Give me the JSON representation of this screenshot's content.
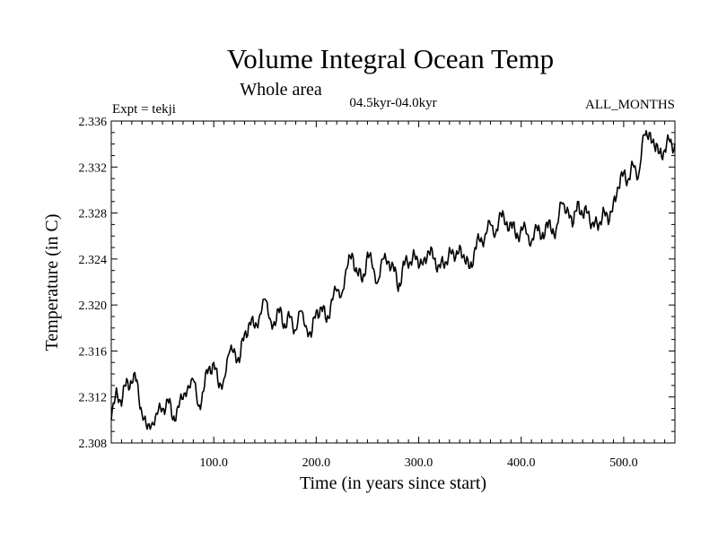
{
  "chart_data": {
    "type": "line",
    "title": "Volume Integral Ocean Temp",
    "subtitle": "Whole area",
    "period_label": "04.5kyr-04.0kyr",
    "expt_label": "Expt = tekji",
    "months_label": "ALL_MONTHS",
    "xlabel": "Time (in years since start)",
    "ylabel": "Temperature (in C)",
    "xlim": [
      0,
      550
    ],
    "ylim": [
      2.308,
      2.336
    ],
    "xticks": [
      100,
      200,
      300,
      400,
      500
    ],
    "xtick_labels": [
      "100.0",
      "200.0",
      "300.0",
      "400.0",
      "500.0"
    ],
    "yticks": [
      2.308,
      2.312,
      2.316,
      2.32,
      2.324,
      2.328,
      2.332,
      2.336
    ],
    "ytick_labels": [
      "2.308",
      "2.312",
      "2.316",
      "2.320",
      "2.324",
      "2.328",
      "2.332",
      "2.336"
    ],
    "series": [
      {
        "name": "Volume Integral Ocean Temp",
        "x": [
          0,
          5,
          10,
          15,
          20,
          25,
          30,
          35,
          40,
          45,
          50,
          55,
          60,
          65,
          70,
          75,
          80,
          85,
          90,
          95,
          100,
          105,
          110,
          115,
          120,
          125,
          130,
          135,
          140,
          145,
          150,
          155,
          160,
          165,
          170,
          175,
          180,
          185,
          190,
          195,
          200,
          205,
          210,
          215,
          220,
          225,
          230,
          235,
          240,
          245,
          250,
          255,
          260,
          265,
          270,
          275,
          280,
          285,
          290,
          295,
          300,
          305,
          310,
          315,
          320,
          325,
          330,
          335,
          340,
          345,
          350,
          355,
          360,
          365,
          370,
          375,
          380,
          385,
          390,
          395,
          400,
          405,
          410,
          415,
          420,
          425,
          430,
          435,
          440,
          445,
          450,
          455,
          460,
          465,
          470,
          475,
          480,
          485,
          490,
          495,
          500,
          505,
          510,
          515,
          520,
          525,
          530,
          535,
          540,
          545,
          550
        ],
        "values": [
          2.31,
          2.3128,
          2.3112,
          2.3136,
          2.3132,
          2.3135,
          2.3105,
          2.3092,
          2.3098,
          2.3105,
          2.311,
          2.3118,
          2.31,
          2.3112,
          2.3118,
          2.313,
          2.3135,
          2.3112,
          2.3125,
          2.3145,
          2.315,
          2.3128,
          2.3136,
          2.3158,
          2.3162,
          2.315,
          2.3175,
          2.3185,
          2.318,
          2.3192,
          2.3205,
          2.3188,
          2.3182,
          2.3198,
          2.318,
          2.319,
          2.3178,
          2.3195,
          2.3182,
          2.3172,
          2.3195,
          2.3198,
          2.3185,
          2.3205,
          2.3212,
          2.321,
          2.3232,
          2.3245,
          2.3228,
          2.322,
          2.3246,
          2.3232,
          2.322,
          2.324,
          2.3238,
          2.3235,
          2.3212,
          2.3238,
          2.3232,
          2.3248,
          2.3232,
          2.324,
          2.3246,
          2.324,
          2.3235,
          2.3232,
          2.325,
          2.3238,
          2.3252,
          2.3238,
          2.3232,
          2.325,
          2.3255,
          2.3262,
          2.327,
          2.3262,
          2.328,
          2.327,
          2.3272,
          2.3258,
          2.3268,
          2.3262,
          2.3255,
          2.3268,
          2.3258,
          2.3272,
          2.3262,
          2.327,
          2.3288,
          2.3285,
          2.3268,
          2.329,
          2.3278,
          2.328,
          2.3272,
          2.3265,
          2.3285,
          2.327,
          2.329,
          2.3302,
          2.3315,
          2.331,
          2.332,
          2.3315,
          2.3348,
          2.335,
          2.3338,
          2.3332,
          2.3335,
          2.3342,
          2.334
        ]
      }
    ]
  }
}
